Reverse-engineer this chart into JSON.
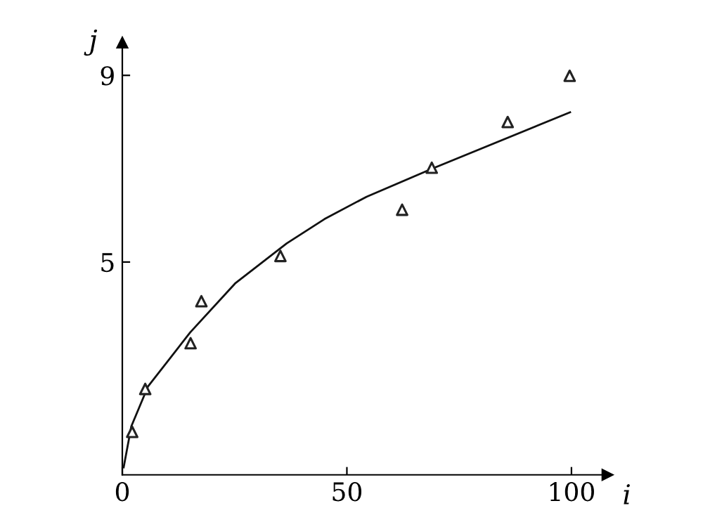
{
  "chart_data": {
    "type": "scatter",
    "xlabel": "i",
    "ylabel": "j",
    "xlim": [
      0,
      108
    ],
    "ylim": [
      0.44,
      9.7
    ],
    "xticks": [
      0,
      50,
      100
    ],
    "yticks": [
      5,
      9
    ],
    "grid": false,
    "legend": false,
    "marker": "triangle",
    "series": [
      {
        "color": "#222222",
        "x": [
          2.2,
          5.1,
          15.2,
          17.6,
          35.2,
          62.3,
          68.9,
          85.8,
          99.6
        ],
        "values": [
          1.36,
          2.28,
          3.26,
          4.16,
          5.13,
          6.12,
          7.02,
          8.0,
          8.99
        ]
      },
      {
        "type": "line",
        "color": "#111111",
        "marker": "none",
        "line_style": "solid",
        "x": [
          0.3,
          2,
          5.7,
          15.1,
          25.1,
          36.6,
          45,
          54.4,
          69,
          99.7
        ],
        "values": [
          0.6,
          1.48,
          2.33,
          3.49,
          4.54,
          5.4,
          5.92,
          6.4,
          7.0,
          8.21
        ]
      }
    ]
  }
}
